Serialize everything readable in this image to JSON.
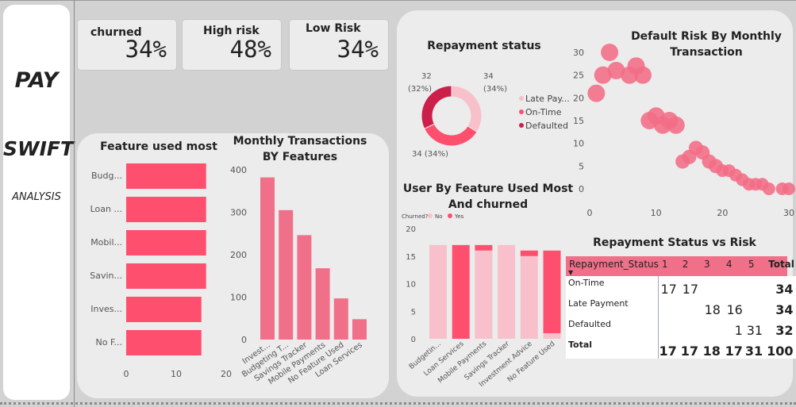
{
  "sidebar": {
    "line1": "PAY",
    "line2": "SWIFT",
    "line3": "ANALYSIS"
  },
  "kpis": [
    {
      "label": "churned",
      "value": "34%"
    },
    {
      "label": "High risk",
      "value": "48%"
    },
    {
      "label": "Low Risk",
      "value": "34%"
    }
  ],
  "colors": {
    "primary": "#ff4f6e",
    "secondary": "#f0708a",
    "light": "#f8c0cb",
    "dark": "#cc1f4a",
    "bubble": "#f26d86"
  },
  "chart_data": [
    {
      "id": "feature_used_most",
      "type": "bar",
      "orientation": "horizontal",
      "title": "Feature used most",
      "categories": [
        "Budg...",
        "Loan ...",
        "Mobil...",
        "Savin...",
        "Inves...",
        "No F..."
      ],
      "values": [
        17,
        17,
        17,
        17,
        16,
        16
      ],
      "xticks": [
        "0",
        "10",
        "20"
      ],
      "xlim": [
        0,
        20
      ]
    },
    {
      "id": "monthly_transactions_by_features",
      "type": "bar",
      "title": "Monthly Transactions BY Features",
      "categories": [
        "Invest...",
        "Budgeting T...",
        "Savings Tracker",
        "Mobile Payments",
        "No Feature Used",
        "Loan Services"
      ],
      "values": [
        382,
        305,
        246,
        168,
        97,
        48
      ],
      "yticks": [
        "0",
        "100",
        "200",
        "300",
        "400"
      ],
      "ylim": [
        0,
        400
      ]
    },
    {
      "id": "repayment_status",
      "type": "pie",
      "title": "Repayment status",
      "series": [
        {
          "name": "Late Pay...",
          "value": 34,
          "label": "34\n(34%)"
        },
        {
          "name": "On-Time",
          "value": 34,
          "label": "34 (34%)"
        },
        {
          "name": "Defaulted",
          "value": 32,
          "label": "32\n(32%)"
        }
      ],
      "slice_labels": [
        "34",
        "(34%)",
        "34 (34%)",
        "32",
        "(32%)"
      ]
    },
    {
      "id": "default_risk_by_monthly_transaction",
      "type": "scatter",
      "title": "Default Risk By Monthly Transaction",
      "x": [
        3,
        4,
        2,
        7,
        6,
        8,
        1,
        10,
        12,
        9,
        11,
        13,
        16,
        14,
        17,
        15,
        18,
        19,
        21,
        22,
        20,
        23,
        24,
        26,
        27,
        25,
        29,
        30
      ],
      "y": [
        30,
        26,
        25,
        27,
        25,
        25,
        21,
        16,
        15,
        15,
        14,
        14,
        9,
        6,
        8,
        7,
        6,
        5,
        4,
        3,
        4,
        2,
        1,
        1,
        0,
        1,
        0,
        0
      ],
      "xticks": [
        "0",
        "10",
        "20",
        "30"
      ],
      "yticks": [
        "0",
        "5",
        "10",
        "15",
        "20",
        "25",
        "30"
      ],
      "xlim": [
        0,
        30
      ],
      "ylim": [
        0,
        30
      ]
    },
    {
      "id": "user_by_feature_used_most_and_churned",
      "type": "bar",
      "stacked": true,
      "title": "User By Feature Used Most And churned",
      "legend_title": "Churned?",
      "categories": [
        "Budgetin...",
        "Loan Services",
        "Mobile Payments",
        "Savings Tracker",
        "Investment Advice",
        "No Feature Used"
      ],
      "series": [
        {
          "name": "No",
          "values": [
            17,
            0,
            16,
            17,
            15,
            1
          ]
        },
        {
          "name": "Yes",
          "values": [
            0,
            17,
            1,
            0,
            1,
            15
          ]
        }
      ],
      "yticks": [
        "0",
        "5",
        "10",
        "15",
        "20"
      ],
      "ylim": [
        0,
        20
      ]
    },
    {
      "id": "repayment_status_vs_risk",
      "type": "table",
      "title": "Repayment Status vs Risk",
      "columns": [
        "Repayment_Status",
        "1",
        "2",
        "3",
        "4",
        "5",
        "Total"
      ],
      "rows": [
        {
          "label": "On-Time",
          "cells": [
            "17",
            "17",
            "",
            "",
            "",
            "34"
          ]
        },
        {
          "label": "Late Payment",
          "cells": [
            "",
            "",
            "18",
            "16",
            "",
            "34"
          ]
        },
        {
          "label": "Defaulted",
          "cells": [
            "",
            "",
            "",
            "1",
            "31",
            "32"
          ]
        },
        {
          "label": "Total",
          "cells": [
            "17",
            "17",
            "18",
            "17",
            "31",
            "100"
          ]
        }
      ]
    }
  ]
}
